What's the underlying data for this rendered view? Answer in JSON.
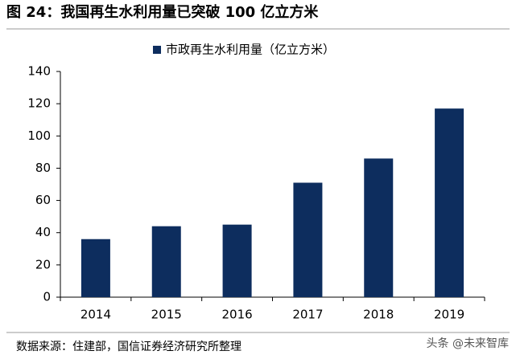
{
  "chart_data": {
    "type": "bar",
    "title": "图 24：我国再生水利用量已突破 100 亿立方米",
    "categories": [
      "2014",
      "2015",
      "2016",
      "2017",
      "2018",
      "2019"
    ],
    "series": [
      {
        "name": "市政再生水利用量（亿立方米）",
        "color": "#0d2d5e",
        "values": [
          36,
          44,
          45,
          71,
          86,
          117
        ]
      }
    ],
    "ylim": [
      0,
      140
    ],
    "yticks": [
      0,
      20,
      40,
      60,
      80,
      100,
      120,
      140
    ],
    "grid": false,
    "legend": "top",
    "source": "数据来源：住建部，国信证券经济研究所整理",
    "watermark": "头条 @未来智库"
  }
}
